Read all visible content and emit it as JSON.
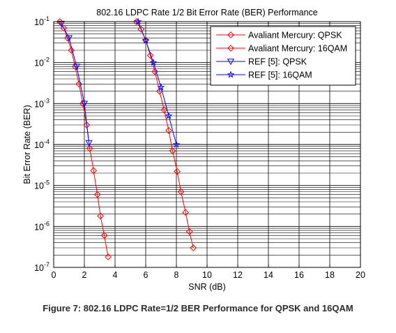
{
  "caption": "Figure 7: 802.16 LDPC Rate=1/2 BER Performance for QPSK and 16QAM",
  "chart_data": {
    "type": "line",
    "title": "802.16 LDPC Rate 1/2 Bit Error Rate (BER) Performance",
    "xlabel": "SNR (dB)",
    "ylabel": "Bit Error Rate (BER)",
    "xlim": [
      0,
      20
    ],
    "ylim": [
      1e-07,
      0.1
    ],
    "yscale": "log",
    "grid": true,
    "legend_position": "top-right",
    "x_ticks": [
      "0",
      "2",
      "4",
      "6",
      "8",
      "10",
      "12",
      "14",
      "16",
      "18",
      "20"
    ],
    "y_ticks": [
      {
        "base": "10",
        "exp": "-7"
      },
      {
        "base": "10",
        "exp": "-6"
      },
      {
        "base": "10",
        "exp": "-5"
      },
      {
        "base": "10",
        "exp": "-4"
      },
      {
        "base": "10",
        "exp": "-3"
      },
      {
        "base": "10",
        "exp": "-2"
      },
      {
        "base": "10",
        "exp": "-1"
      }
    ],
    "series": [
      {
        "name": "Avaliant Mercury: QPSK",
        "color": "#ff0000",
        "marker": "diamond",
        "x": [
          0.4,
          0.65,
          0.9,
          1.15,
          1.4,
          1.65,
          1.9,
          2.15,
          2.35,
          2.6,
          2.85,
          3.05,
          3.3,
          3.55
        ],
        "y": [
          0.1,
          0.07,
          0.04,
          0.02,
          0.008,
          0.003,
          0.001,
          0.0003,
          8e-05,
          2.3e-05,
          6e-06,
          1.8e-06,
          6e-07,
          1.8e-07
        ]
      },
      {
        "name": "Avaliant Mercury: 16QAM",
        "color": "#ff0000",
        "marker": "diamond",
        "x": [
          5.4,
          5.7,
          6.0,
          6.3,
          6.6,
          6.9,
          7.2,
          7.5,
          7.75,
          8.05,
          8.3,
          8.6,
          8.85,
          9.1
        ],
        "y": [
          0.1,
          0.065,
          0.035,
          0.015,
          0.006,
          0.002,
          0.0007,
          0.00022,
          7e-05,
          2.2e-05,
          7e-06,
          2.2e-06,
          7.5e-07,
          3e-07
        ]
      },
      {
        "name": "REF [5]: QPSK",
        "color": "#0000ff",
        "marker": "triangle-down",
        "x": [
          0.5,
          1.0,
          1.5,
          2.0,
          2.3
        ],
        "y": [
          0.09,
          0.04,
          0.008,
          0.001,
          0.00011
        ]
      },
      {
        "name": "REF [5]: 16QAM",
        "color": "#0000ff",
        "marker": "star",
        "x": [
          5.5,
          6.0,
          6.5,
          7.0,
          7.5,
          8.0
        ],
        "y": [
          0.1,
          0.035,
          0.01,
          0.0025,
          0.0005,
          0.0001
        ]
      }
    ]
  }
}
